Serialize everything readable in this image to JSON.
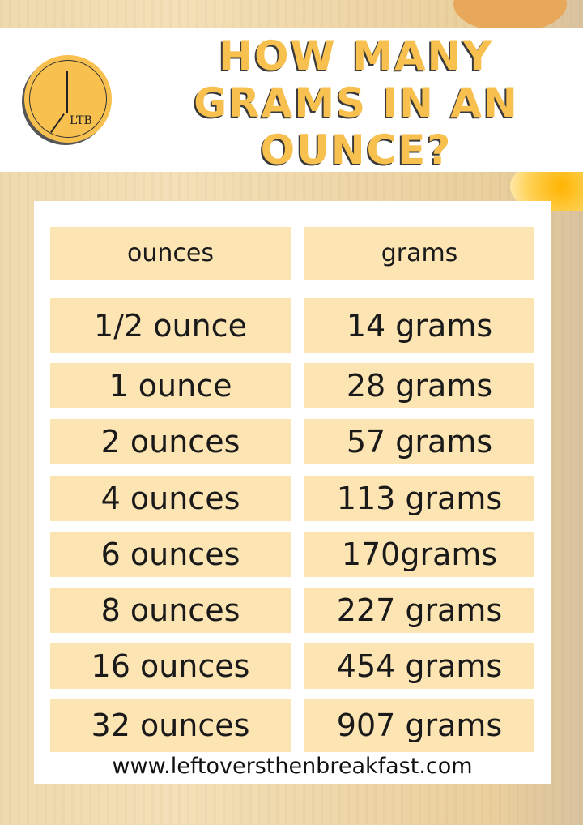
{
  "logo": {
    "text": "LTB"
  },
  "title": "HOW MANY GRAMS IN AN OUNCE?",
  "table": {
    "headers": [
      "ounces",
      "grams"
    ],
    "rows": [
      [
        "1/2 ounce",
        "14 grams"
      ],
      [
        "1 ounce",
        "28 grams"
      ],
      [
        "2 ounces",
        "57 grams"
      ],
      [
        "4 ounces",
        "113 grams"
      ],
      [
        "6 ounces",
        "170grams"
      ],
      [
        "8 ounces",
        "227 grams"
      ],
      [
        "16 ounces",
        "454 grams"
      ],
      [
        "32 ounces",
        "907 grams"
      ]
    ]
  },
  "footer": {
    "url": "www.leftoversthenbreakfast.com"
  },
  "colors": {
    "accent": "#f7c04f",
    "cell": "#fde4b3"
  }
}
